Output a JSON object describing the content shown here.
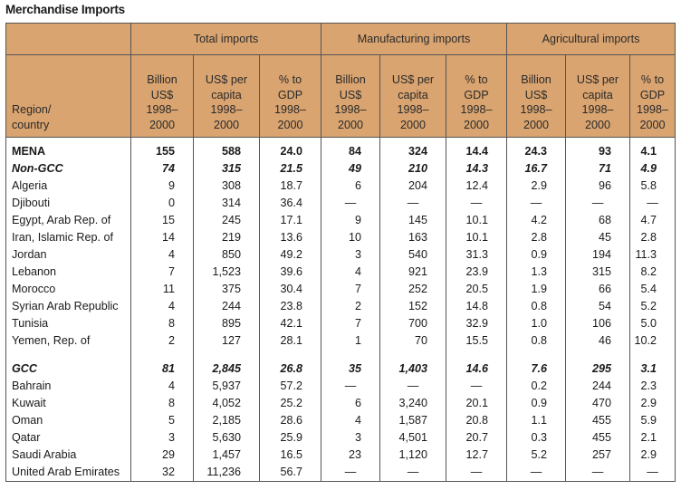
{
  "title": "Merchandise Imports",
  "header": {
    "region": "Region/ country",
    "groups": [
      "Total imports",
      "Manufacturing imports",
      "Agricultural imports"
    ],
    "cols": [
      "Billion US$ 1998–2000",
      "US$ per capita 1998–2000",
      "% to GDP 1998–2000"
    ]
  },
  "rows": [
    {
      "name": "MENA",
      "style": "bold",
      "v": [
        "155",
        "588",
        "24.0",
        "84",
        "324",
        "14.4",
        "24.3",
        "93",
        "4.1"
      ]
    },
    {
      "name": "Non-GCC",
      "style": "bolditalic",
      "v": [
        "74",
        "315",
        "21.5",
        "49",
        "210",
        "14.3",
        "16.7",
        "71",
        "4.9"
      ]
    },
    {
      "name": "Algeria",
      "v": [
        "9",
        "308",
        "18.7",
        "6",
        "204",
        "12.4",
        "2.9",
        "96",
        "5.8"
      ]
    },
    {
      "name": "Djibouti",
      "v": [
        "0",
        "314",
        "36.4",
        "—",
        "—",
        "—",
        "—",
        "—",
        "—"
      ]
    },
    {
      "name": "Egypt, Arab Rep. of",
      "v": [
        "15",
        "245",
        "17.1",
        "9",
        "145",
        "10.1",
        "4.2",
        "68",
        "4.7"
      ]
    },
    {
      "name": "Iran, Islamic Rep. of",
      "v": [
        "14",
        "219",
        "13.6",
        "10",
        "163",
        "10.1",
        "2.8",
        "45",
        "2.8"
      ]
    },
    {
      "name": "Jordan",
      "v": [
        "4",
        "850",
        "49.2",
        "3",
        "540",
        "31.3",
        "0.9",
        "194",
        "11.3"
      ]
    },
    {
      "name": "Lebanon",
      "v": [
        "7",
        "1,523",
        "39.6",
        "4",
        "921",
        "23.9",
        "1.3",
        "315",
        "8.2"
      ]
    },
    {
      "name": "Morocco",
      "v": [
        "11",
        "375",
        "30.4",
        "7",
        "252",
        "20.5",
        "1.9",
        "66",
        "5.4"
      ]
    },
    {
      "name": "Syrian Arab Republic",
      "v": [
        "4",
        "244",
        "23.8",
        "2",
        "152",
        "14.8",
        "0.8",
        "54",
        "5.2"
      ]
    },
    {
      "name": "Tunisia",
      "v": [
        "8",
        "895",
        "42.1",
        "7",
        "700",
        "32.9",
        "1.0",
        "106",
        "5.0"
      ]
    },
    {
      "name": "Yemen, Rep. of",
      "v": [
        "2",
        "127",
        "28.1",
        "1",
        "70",
        "15.5",
        "0.8",
        "46",
        "10.2"
      ]
    },
    {
      "spacer": true
    },
    {
      "name": "GCC",
      "style": "bolditalic",
      "v": [
        "81",
        "2,845",
        "26.8",
        "35",
        "1,403",
        "14.6",
        "7.6",
        "295",
        "3.1"
      ]
    },
    {
      "name": "Bahrain",
      "v": [
        "4",
        "5,937",
        "57.2",
        "—",
        "—",
        "—",
        "0.2",
        "244",
        "2.3"
      ]
    },
    {
      "name": "Kuwait",
      "v": [
        "8",
        "4,052",
        "25.2",
        "6",
        "3,240",
        "20.1",
        "0.9",
        "470",
        "2.9"
      ]
    },
    {
      "name": "Oman",
      "v": [
        "5",
        "2,185",
        "28.6",
        "4",
        "1,587",
        "20.8",
        "1.1",
        "455",
        "5.9"
      ]
    },
    {
      "name": "Qatar",
      "v": [
        "3",
        "5,630",
        "25.9",
        "3",
        "4,501",
        "20.7",
        "0.3",
        "455",
        "2.1"
      ]
    },
    {
      "name": "Saudi Arabia",
      "v": [
        "29",
        "1,457",
        "16.5",
        "23",
        "1,120",
        "12.7",
        "5.2",
        "257",
        "2.9"
      ]
    },
    {
      "name": "United Arab Emirates",
      "v": [
        "32",
        "11,236",
        "56.7",
        "—",
        "—",
        "—",
        "—",
        "—",
        "—"
      ]
    }
  ]
}
